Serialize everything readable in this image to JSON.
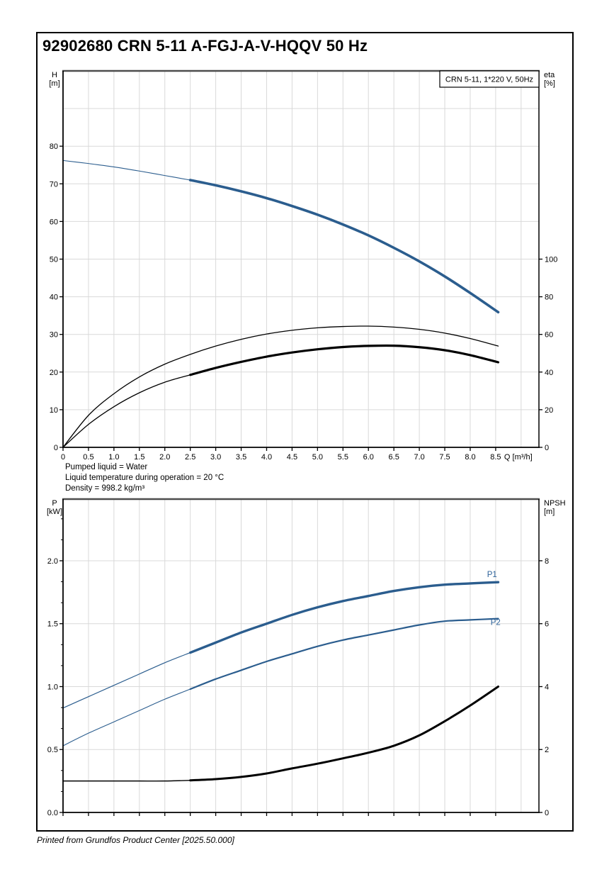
{
  "page": {
    "title": "92902680 CRN 5-11 A-FGJ-A-V-HQQV 50 Hz",
    "footer": "Printed from Grundfos Product Center [2025.50.000]"
  },
  "info_lines": [
    "Pumped liquid = Water",
    "Liquid temperature during operation = 20 °C",
    "Density = 998.2 kg/m³"
  ],
  "colors": {
    "curve_blue": "#2B5D8E",
    "curve_black": "#000000",
    "grid": "#d9d9d9",
    "spine": "#000000",
    "spine_top": "#4d4d4d",
    "label_blue": "#2F649B",
    "legend_bg": "#ffffff"
  },
  "chart_data": [
    {
      "type": "line",
      "name": "head-efficiency",
      "legend": "CRN 5-11, 1*220 V, 50Hz",
      "x_axis": {
        "min": 0,
        "max": 9.35,
        "grid_step": 0.5,
        "label": "Q [m³/h]",
        "show_tick_labels": true,
        "ticks": [
          {
            "v": 0,
            "l": "0"
          },
          {
            "v": 0.5,
            "l": "0.5"
          },
          {
            "v": 1,
            "l": "1.0"
          },
          {
            "v": 1.5,
            "l": "1.5"
          },
          {
            "v": 2,
            "l": "2.0"
          },
          {
            "v": 2.5,
            "l": "2.5"
          },
          {
            "v": 3,
            "l": "3.0"
          },
          {
            "v": 3.5,
            "l": "3.5"
          },
          {
            "v": 4,
            "l": "4.0"
          },
          {
            "v": 4.5,
            "l": "4.5"
          },
          {
            "v": 5,
            "l": "5.0"
          },
          {
            "v": 5.5,
            "l": "5.5"
          },
          {
            "v": 6,
            "l": "6.0"
          },
          {
            "v": 6.5,
            "l": "6.5"
          },
          {
            "v": 7,
            "l": "7.0"
          },
          {
            "v": 7.5,
            "l": "7.5"
          },
          {
            "v": 8,
            "l": "8.0"
          },
          {
            "v": 8.5,
            "l": "8.5"
          }
        ]
      },
      "left_axis": {
        "unit_lines": [
          "H",
          "[m]"
        ],
        "min": 0,
        "max": 100,
        "grid_step": 10,
        "minor_div": null,
        "ticks": [
          {
            "v": 0,
            "l": "0"
          },
          {
            "v": 10,
            "l": "10"
          },
          {
            "v": 20,
            "l": "20"
          },
          {
            "v": 30,
            "l": "30"
          },
          {
            "v": 40,
            "l": "40"
          },
          {
            "v": 50,
            "l": "50"
          },
          {
            "v": 60,
            "l": "60"
          },
          {
            "v": 70,
            "l": "70"
          },
          {
            "v": 80,
            "l": "80"
          }
        ]
      },
      "right_axis": {
        "unit_lines": [
          "eta",
          "[%]"
        ],
        "min": 0,
        "max": 200,
        "ticks": [
          {
            "v": 0,
            "l": "0"
          },
          {
            "v": 20,
            "l": "20"
          },
          {
            "v": 40,
            "l": "40"
          },
          {
            "v": 60,
            "l": "60"
          },
          {
            "v": 80,
            "l": "80"
          },
          {
            "v": 100,
            "l": "100"
          }
        ]
      },
      "series": [
        {
          "name": "H",
          "axis": "left",
          "color": "blue",
          "width": 1.1,
          "bold_width": 3.6,
          "bold_from": 2.5,
          "points": [
            [
              0,
              76.2
            ],
            [
              0.5,
              75.4
            ],
            [
              1,
              74.5
            ],
            [
              1.5,
              73.4
            ],
            [
              2,
              72.2
            ],
            [
              2.5,
              71
            ],
            [
              3,
              69.6
            ],
            [
              3.5,
              68
            ],
            [
              4,
              66.2
            ],
            [
              4.5,
              64.1
            ],
            [
              5,
              61.8
            ],
            [
              5.5,
              59.2
            ],
            [
              6,
              56.3
            ],
            [
              6.5,
              53
            ],
            [
              7,
              49.4
            ],
            [
              7.5,
              45.4
            ],
            [
              8,
              41
            ],
            [
              8.55,
              35.9
            ]
          ]
        },
        {
          "name": "eta",
          "axis": "right",
          "color": "black",
          "width": 1.3,
          "bold_width": null,
          "bold_from": null,
          "points": [
            [
              0,
              0
            ],
            [
              0.5,
              17
            ],
            [
              1,
              28.5
            ],
            [
              1.5,
              37.4
            ],
            [
              2,
              44.2
            ],
            [
              2.5,
              49.4
            ],
            [
              3,
              53.8
            ],
            [
              3.5,
              57.4
            ],
            [
              4,
              60.2
            ],
            [
              4.5,
              62.2
            ],
            [
              5,
              63.5
            ],
            [
              5.5,
              64.2
            ],
            [
              6,
              64.4
            ],
            [
              6.5,
              63.9
            ],
            [
              7,
              62.7
            ],
            [
              7.5,
              60.7
            ],
            [
              8,
              57.8
            ],
            [
              8.55,
              53.8
            ]
          ]
        },
        {
          "name": "eta-duty",
          "axis": "right",
          "color": "black",
          "width": 1.3,
          "bold_width": 3.2,
          "bold_from": 2.5,
          "points": [
            [
              0,
              0
            ],
            [
              0.5,
              12.2
            ],
            [
              1,
              21.6
            ],
            [
              1.5,
              29
            ],
            [
              2,
              34.6
            ],
            [
              2.5,
              38.5
            ],
            [
              3,
              42.2
            ],
            [
              3.5,
              45.4
            ],
            [
              4,
              48.2
            ],
            [
              4.5,
              50.4
            ],
            [
              5,
              52.1
            ],
            [
              5.5,
              53.3
            ],
            [
              6,
              53.9
            ],
            [
              6.5,
              54
            ],
            [
              7,
              53.2
            ],
            [
              7.5,
              51.6
            ],
            [
              8,
              49
            ],
            [
              8.55,
              45.2
            ]
          ]
        }
      ],
      "annotations": []
    },
    {
      "type": "line",
      "name": "power-npsh",
      "legend": null,
      "x_axis": {
        "min": 0,
        "max": 9.35,
        "grid_step": 0.5,
        "label": null,
        "show_tick_labels": false,
        "ticks": [
          0,
          0.5,
          1,
          1.5,
          2,
          2.5,
          3,
          3.5,
          4,
          4.5,
          5,
          5.5,
          6,
          6.5,
          7,
          7.5,
          8,
          8.5
        ]
      },
      "left_axis": {
        "unit_lines": [
          "P",
          "[kW]"
        ],
        "min": 0,
        "max": 2.49,
        "grid_step": 0.5,
        "minor_div": 3,
        "ticks": [
          {
            "v": 0,
            "l": "0.0"
          },
          {
            "v": 0.5,
            "l": "0.5"
          },
          {
            "v": 1,
            "l": "1.0"
          },
          {
            "v": 1.5,
            "l": "1.5"
          },
          {
            "v": 2,
            "l": "2.0"
          }
        ]
      },
      "right_axis": {
        "unit_lines": [
          "NPSH",
          "[m]"
        ],
        "min": 0,
        "max": 9.96,
        "ticks": [
          {
            "v": 0,
            "l": "0"
          },
          {
            "v": 2,
            "l": "2"
          },
          {
            "v": 4,
            "l": "4"
          },
          {
            "v": 6,
            "l": "6"
          },
          {
            "v": 8,
            "l": "8"
          }
        ]
      },
      "series": [
        {
          "name": "P1",
          "axis": "left",
          "color": "blue",
          "width": 1.2,
          "bold_width": 3.4,
          "bold_from": 2.5,
          "points": [
            [
              0,
              0.83
            ],
            [
              0.5,
              0.92
            ],
            [
              1,
              1.01
            ],
            [
              1.5,
              1.1
            ],
            [
              2,
              1.19
            ],
            [
              2.5,
              1.27
            ],
            [
              3,
              1.35
            ],
            [
              3.5,
              1.43
            ],
            [
              4,
              1.5
            ],
            [
              4.5,
              1.57
            ],
            [
              5,
              1.63
            ],
            [
              5.5,
              1.68
            ],
            [
              6,
              1.72
            ],
            [
              6.5,
              1.76
            ],
            [
              7,
              1.79
            ],
            [
              7.5,
              1.81
            ],
            [
              8,
              1.82
            ],
            [
              8.55,
              1.83
            ]
          ]
        },
        {
          "name": "P2",
          "axis": "left",
          "color": "blue",
          "width": 1.1,
          "bold_width": 2.2,
          "bold_from": 2.5,
          "points": [
            [
              0,
              0.53
            ],
            [
              0.5,
              0.63
            ],
            [
              1,
              0.72
            ],
            [
              1.5,
              0.81
            ],
            [
              2,
              0.9
            ],
            [
              2.5,
              0.98
            ],
            [
              3,
              1.06
            ],
            [
              3.5,
              1.13
            ],
            [
              4,
              1.2
            ],
            [
              4.5,
              1.26
            ],
            [
              5,
              1.32
            ],
            [
              5.5,
              1.37
            ],
            [
              6,
              1.41
            ],
            [
              6.5,
              1.45
            ],
            [
              7,
              1.49
            ],
            [
              7.5,
              1.52
            ],
            [
              8,
              1.53
            ],
            [
              8.55,
              1.54
            ]
          ]
        },
        {
          "name": "NPSH",
          "axis": "right",
          "color": "black",
          "width": 1.4,
          "bold_width": 3,
          "bold_from": 2.5,
          "points": [
            [
              0,
              1
            ],
            [
              0.5,
              1
            ],
            [
              1,
              1
            ],
            [
              1.5,
              1
            ],
            [
              2,
              1
            ],
            [
              2.5,
              1.02
            ],
            [
              3,
              1.06
            ],
            [
              3.5,
              1.13
            ],
            [
              4,
              1.24
            ],
            [
              4.5,
              1.4
            ],
            [
              5,
              1.55
            ],
            [
              5.5,
              1.72
            ],
            [
              6,
              1.9
            ],
            [
              6.5,
              2.12
            ],
            [
              7,
              2.45
            ],
            [
              7.5,
              2.9
            ],
            [
              8,
              3.4
            ],
            [
              8.55,
              4
            ]
          ]
        }
      ],
      "annotations": [
        {
          "text": "P1",
          "x": 8.33,
          "y": 1.87,
          "axis": "left"
        },
        {
          "text": "P2",
          "x": 8.4,
          "y": 1.49,
          "axis": "left"
        }
      ]
    }
  ]
}
